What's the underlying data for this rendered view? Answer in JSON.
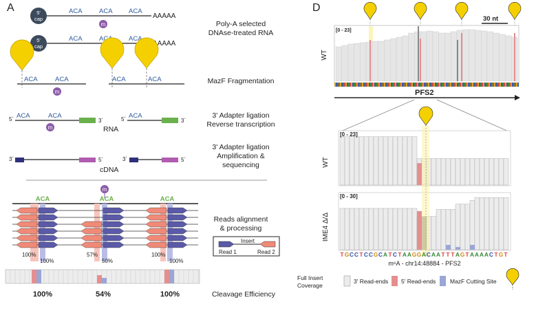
{
  "panel_a": {
    "letter": "A",
    "cap": [
      "5'",
      "cap"
    ],
    "aca": "ACA",
    "poly_a": "AAAAA",
    "m_mark": "m",
    "step1": [
      "Poly-A selected",
      "DNAse-treated RNA"
    ],
    "step2": "MazF Fragmentation",
    "step3": [
      "3' Adapter ligation",
      "Reverse transcription"
    ],
    "step4": [
      "3' Adapter ligation",
      "Amplification &",
      "sequencing"
    ],
    "step5": [
      "Reads alignment",
      "& processing"
    ],
    "step6": "Cleavage Efficiency",
    "rna_label": "RNA",
    "cdna_label": "cDNA",
    "three_prime": "3´",
    "five_prime": "5´",
    "legend": {
      "insert": "Insert",
      "read1": "Read 1",
      "read2": "Read 2"
    },
    "pcts_left": [
      "100%",
      "57%",
      "100%"
    ],
    "pcts_right": [
      "100%",
      "50%",
      "100%"
    ],
    "efficiency": [
      "100%",
      "54%",
      "100%"
    ],
    "colors": {
      "read1": "#5b5aa8",
      "read2": "#f08a78",
      "green": "#6ab04c",
      "cdna_left": "#2f2f7a",
      "cdna_right": "#b05cb0",
      "yellow": "#f5d000",
      "m_circle": "#8b5aa8"
    }
  },
  "panel_d": {
    "letter": "D",
    "scale": "30 nt",
    "wt_label": "WT",
    "range_top": "[0 - 23]",
    "gene": "PFS2",
    "range_mid": "[0 - 23]",
    "range_bottom": "[0 - 30]",
    "mutant_label": "IME4 Δ/Δ",
    "sequence": "TGCCTCCGCATCTAAGGACAATTTAGTAAAACTGT",
    "locus": "m⁶A - chr14:48884 - PFS2",
    "legend": {
      "full": [
        "Full Insert",
        "Coverage"
      ],
      "three": "3' Read-ends",
      "five": "5' Read-ends",
      "mazf": "MazF Cutting Site"
    },
    "colors": {
      "coverage": "#ececec",
      "three_end": "#e58e90",
      "five_end": "#9aa6d6",
      "highlight": "#fbf3a8"
    }
  }
}
